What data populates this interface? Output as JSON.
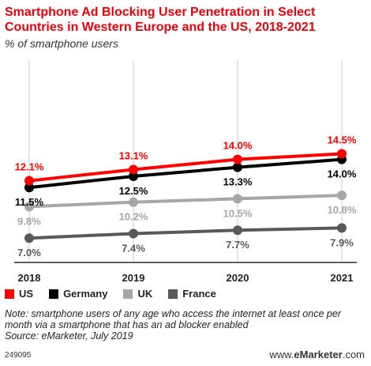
{
  "header": {
    "title": "Smartphone Ad Blocking User Penetration in Select Countries in Western Europe and the US, 2018-2021",
    "subtitle": "% of smartphone users"
  },
  "footer": {
    "note": "Note: smartphone users of any age who access the internet at least once per month via a smartphone that has an ad blocker enabled",
    "source": "Source: eMarketer, July 2019",
    "id": "249095",
    "brand_prefix": "www.",
    "brand_name": "eMarketer",
    "brand_suffix": ".com"
  },
  "colors": {
    "US": "#ff0000",
    "Germany": "#000000",
    "UK": "#a6a6a6",
    "France": "#595959",
    "grid": "#cccccc"
  },
  "chart_data": {
    "type": "line",
    "x": [
      "2018",
      "2019",
      "2020",
      "2021"
    ],
    "ylim": [
      0,
      16
    ],
    "grid": true,
    "legend": "bottom",
    "series": [
      {
        "name": "US",
        "values": [
          12.1,
          13.1,
          14.0,
          14.5
        ],
        "labels": [
          "12.1%",
          "13.1%",
          "14.0%",
          "14.5%"
        ],
        "label_pos": "above",
        "label_color": "#ff0000"
      },
      {
        "name": "Germany",
        "values": [
          11.5,
          12.5,
          13.3,
          14.0
        ],
        "labels": [
          "11.5%",
          "12.5%",
          "13.3%",
          "14.0%"
        ],
        "label_pos": "below",
        "label_color": "#000000"
      },
      {
        "name": "UK",
        "values": [
          9.8,
          10.2,
          10.5,
          10.8
        ],
        "labels": [
          "9.8%",
          "10.2%",
          "10.5%",
          "10.8%"
        ],
        "label_pos": "below",
        "label_color": "#a6a6a6"
      },
      {
        "name": "France",
        "values": [
          7.0,
          7.4,
          7.7,
          7.9
        ],
        "labels": [
          "7.0%",
          "7.4%",
          "7.7%",
          "7.9%"
        ],
        "label_pos": "below",
        "label_color": "#595959"
      }
    ]
  }
}
